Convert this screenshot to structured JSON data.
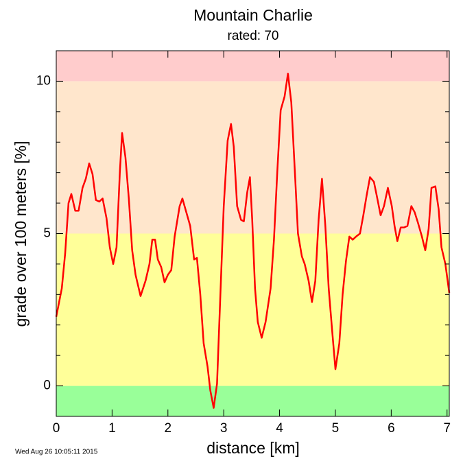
{
  "chart_data": {
    "type": "line",
    "title": "Mountain Charlie",
    "subtitle": "rated: 70",
    "xlabel": "distance [km]",
    "ylabel": "grade over 100 meters [%]",
    "timestamp": "Wed Aug 26 10:05:11 2015",
    "color": "#ff0000",
    "xlim": [
      0,
      7.04
    ],
    "ylim": [
      -1,
      11
    ],
    "xticks": [
      0,
      1,
      2,
      3,
      4,
      5,
      6,
      7
    ],
    "yticks": [
      0,
      5,
      10
    ],
    "yticks_minor": [
      1,
      2,
      3,
      4,
      6,
      7,
      8,
      9
    ],
    "bands": [
      {
        "from": -1,
        "to": 0,
        "color": "#99ff99"
      },
      {
        "from": 0,
        "to": 5,
        "color": "#ffff99"
      },
      {
        "from": 5,
        "to": 10,
        "color": "#ffe6cc"
      },
      {
        "from": 10,
        "to": 11,
        "color": "#ffcccc"
      }
    ],
    "x": [
      0,
      0.1,
      0.16,
      0.22,
      0.27,
      0.34,
      0.4,
      0.47,
      0.53,
      0.59,
      0.65,
      0.71,
      0.77,
      0.83,
      0.9,
      0.96,
      1.02,
      1.08,
      1.14,
      1.18,
      1.24,
      1.3,
      1.36,
      1.42,
      1.51,
      1.6,
      1.67,
      1.72,
      1.77,
      1.82,
      1.88,
      1.94,
      2.0,
      2.06,
      2.12,
      2.21,
      2.26,
      2.33,
      2.4,
      2.47,
      2.52,
      2.58,
      2.64,
      2.71,
      2.76,
      2.82,
      2.88,
      2.94,
      3.0,
      3.07,
      3.13,
      3.18,
      3.24,
      3.31,
      3.36,
      3.42,
      3.47,
      3.51,
      3.56,
      3.61,
      3.68,
      3.75,
      3.84,
      3.9,
      3.96,
      4.02,
      4.09,
      4.15,
      4.21,
      4.28,
      4.33,
      4.4,
      4.45,
      4.52,
      4.58,
      4.64,
      4.7,
      4.76,
      4.82,
      4.88,
      4.94,
      5.0,
      5.07,
      5.13,
      5.19,
      5.25,
      5.31,
      5.37,
      5.44,
      5.5,
      5.56,
      5.62,
      5.69,
      5.74,
      5.81,
      5.87,
      5.94,
      6.01,
      6.06,
      6.11,
      6.17,
      6.23,
      6.29,
      6.36,
      6.42,
      6.48,
      6.55,
      6.61,
      6.67,
      6.72,
      6.79,
      6.85,
      6.9,
      6.97,
      7.04
    ],
    "values": [
      2.27,
      3.2,
      4.35,
      6.0,
      6.3,
      5.75,
      5.75,
      6.5,
      6.8,
      7.3,
      6.95,
      6.1,
      6.05,
      6.15,
      5.5,
      4.55,
      4.0,
      4.55,
      7.05,
      8.3,
      7.5,
      6.15,
      4.45,
      3.65,
      2.95,
      3.45,
      4.0,
      4.8,
      4.8,
      4.15,
      3.9,
      3.4,
      3.65,
      3.8,
      4.9,
      5.9,
      6.15,
      5.7,
      5.25,
      4.15,
      4.2,
      3.0,
      1.4,
      0.63,
      -0.15,
      -0.72,
      0.07,
      3.0,
      5.9,
      8.05,
      8.6,
      7.85,
      5.9,
      5.45,
      5.4,
      6.35,
      6.85,
      5.45,
      3.2,
      2.1,
      1.58,
      2.1,
      3.2,
      4.8,
      7.05,
      9.05,
      9.5,
      10.25,
      9.3,
      6.8,
      5.0,
      4.25,
      4.0,
      3.45,
      2.75,
      3.45,
      5.45,
      6.8,
      5.25,
      3.2,
      1.85,
      0.55,
      1.4,
      3.0,
      4.1,
      4.9,
      4.8,
      4.9,
      5.0,
      5.6,
      6.25,
      6.85,
      6.7,
      6.25,
      5.6,
      5.9,
      6.5,
      5.9,
      5.25,
      4.75,
      5.2,
      5.2,
      5.25,
      5.9,
      5.7,
      5.35,
      4.9,
      4.45,
      5.15,
      6.5,
      6.55,
      5.8,
      4.55,
      4.0,
      3.05
    ]
  }
}
